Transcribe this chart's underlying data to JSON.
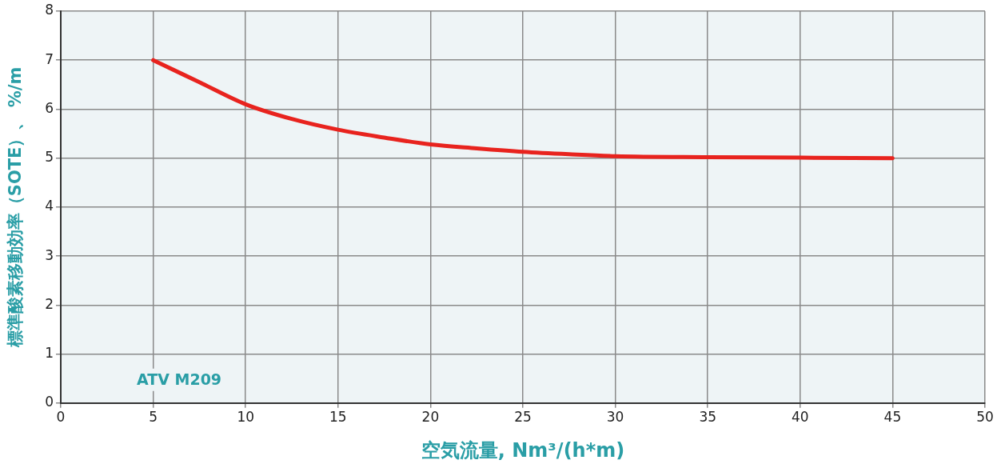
{
  "chart_data": {
    "type": "line",
    "xlabel": "空気流量, Nm³/(h*m)",
    "ylabel": "標準酸素移動効率（SOTE）、 %/m",
    "annotations": [
      "ATV M209"
    ],
    "xlim": [
      0,
      50
    ],
    "xticks": [
      0,
      5,
      10,
      15,
      20,
      25,
      30,
      35,
      40,
      45,
      50
    ],
    "ylim": [
      0,
      8
    ],
    "yticks": [
      0,
      1,
      2,
      3,
      4,
      5,
      6,
      7,
      8
    ],
    "grid": true,
    "legend": false,
    "marker": "none",
    "line_style": "solid",
    "series": [
      {
        "color": "#e8231e",
        "x": [
          5,
          7.5,
          10,
          12.5,
          15,
          17.5,
          20,
          22.5,
          25,
          27.5,
          30,
          35,
          40,
          45
        ],
        "values": [
          7,
          6.55,
          6.1,
          5.8,
          5.58,
          5.42,
          5.28,
          5.2,
          5.13,
          5.08,
          5.04,
          5.02,
          5.01,
          5.0
        ]
      }
    ]
  }
}
